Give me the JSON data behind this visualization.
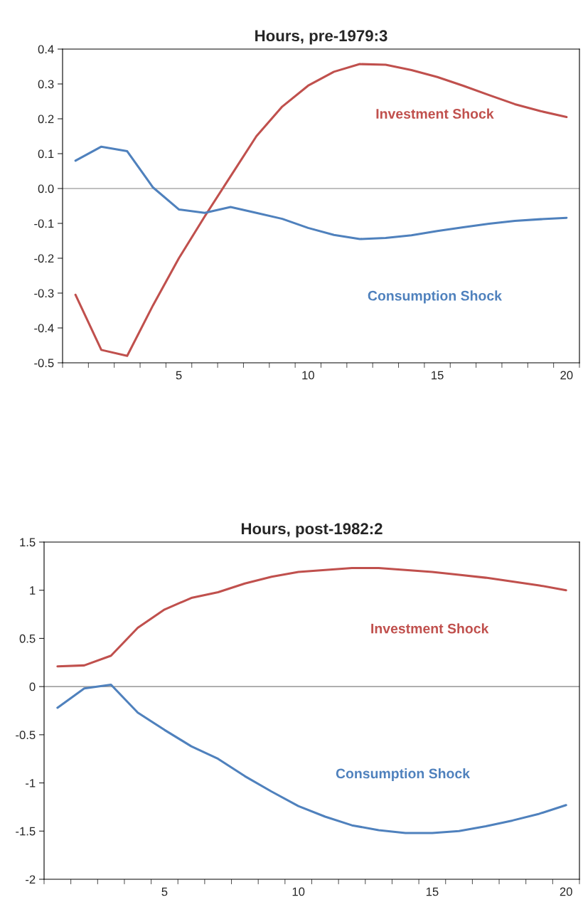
{
  "chart_data": [
    {
      "type": "line",
      "title": "Hours, pre-1979:3",
      "categories": [
        null,
        null,
        null,
        null,
        "5",
        null,
        null,
        null,
        null,
        "10",
        null,
        null,
        null,
        null,
        "15",
        null,
        null,
        null,
        null,
        "20"
      ],
      "series": [
        {
          "name": "Investment Shock",
          "color": "#c0504d",
          "values": [
            -0.305,
            -0.463,
            -0.48,
            -0.335,
            -0.2,
            -0.08,
            0.035,
            0.15,
            0.235,
            0.295,
            0.335,
            0.357,
            0.355,
            0.34,
            0.32,
            0.295,
            0.268,
            0.242,
            0.222,
            0.205
          ]
        },
        {
          "name": "Consumption Shock",
          "color": "#4f81bd",
          "values": [
            0.08,
            0.12,
            0.107,
            0.003,
            -0.06,
            -0.07,
            -0.053,
            -0.07,
            -0.087,
            -0.113,
            -0.133,
            -0.145,
            -0.142,
            -0.134,
            -0.122,
            -0.111,
            -0.101,
            -0.093,
            -0.088,
            -0.084
          ]
        }
      ],
      "ylim": [
        -0.5,
        0.4
      ],
      "yticks": [
        -0.5,
        -0.4,
        -0.3,
        -0.2,
        -0.1,
        {
          "value": 0,
          "label": "0.0"
        },
        0.1,
        0.2,
        0.3,
        0.4
      ],
      "ref_lines": [
        {
          "axis": "y",
          "value": 0,
          "color": "#808080"
        }
      ],
      "grid": false,
      "legend": false,
      "marker": "none",
      "line_style": "solid"
    },
    {
      "type": "line",
      "title": "Hours, post-1982:2",
      "categories": [
        null,
        null,
        null,
        null,
        "5",
        null,
        null,
        null,
        null,
        "10",
        null,
        null,
        null,
        null,
        "15",
        null,
        null,
        null,
        null,
        "20"
      ],
      "series": [
        {
          "name": "Investment Shock",
          "color": "#c0504d",
          "values": [
            0.21,
            0.22,
            0.32,
            0.61,
            0.8,
            0.92,
            0.98,
            1.07,
            1.14,
            1.19,
            1.21,
            1.23,
            1.23,
            1.21,
            1.19,
            1.16,
            1.13,
            1.09,
            1.05,
            1.0
          ]
        },
        {
          "name": "Consumption Shock",
          "color": "#4f81bd",
          "values": [
            -0.22,
            -0.02,
            0.02,
            -0.27,
            -0.45,
            -0.62,
            -0.75,
            -0.93,
            -1.09,
            -1.24,
            -1.35,
            -1.44,
            -1.49,
            -1.52,
            -1.52,
            -1.5,
            -1.45,
            -1.39,
            -1.32,
            -1.23
          ]
        }
      ],
      "ylim": [
        -2,
        1.5
      ],
      "yticks": [
        -2,
        -1.5,
        -1,
        -0.5,
        0,
        0.5,
        1,
        1.5
      ],
      "ref_lines": [
        {
          "axis": "y",
          "value": 0,
          "color": "#808080"
        }
      ],
      "grid": false,
      "legend": false,
      "marker": "none",
      "line_style": "solid"
    }
  ]
}
